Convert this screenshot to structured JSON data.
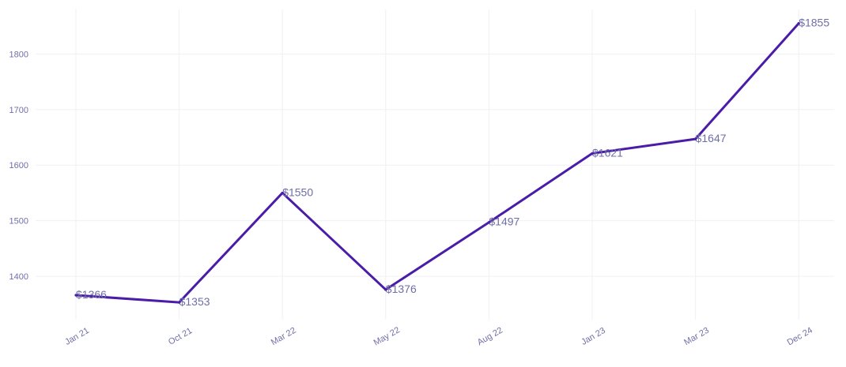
{
  "colors": {
    "line": "#4a1ca8",
    "grid": "#f0f0f5",
    "text": "#6f6fa8",
    "background": "#ffffff"
  },
  "chart_data": {
    "type": "line",
    "title": "",
    "xlabel": "",
    "ylabel": "",
    "categories": [
      "Jan 21",
      "Oct 21",
      "Mar 22",
      "May 22",
      "Aug 22",
      "Jan 23",
      "Mar 23",
      "Dec 24"
    ],
    "series": [
      {
        "values": [
          1366,
          1353,
          1550,
          1376,
          1497,
          1621,
          1647,
          1855
        ],
        "data_labels": [
          "$1366",
          "$1353",
          "$1550",
          "$1376",
          "$1497",
          "$1621",
          "$1647",
          "$1855"
        ]
      }
    ],
    "ylim": [
      1322,
      1880
    ],
    "yticks": [
      1400,
      1500,
      1600,
      1700,
      1800
    ],
    "grid": true,
    "legend": "none"
  }
}
